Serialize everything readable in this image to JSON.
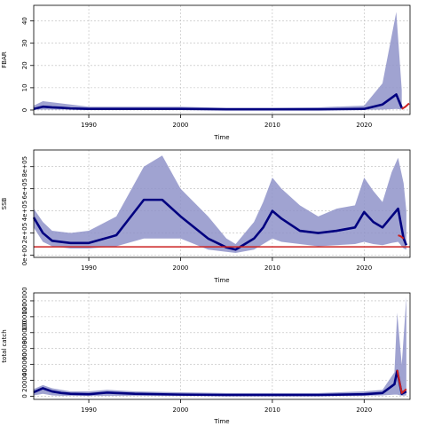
{
  "chart_data": [
    {
      "type": "area",
      "ylabel": "FBAR",
      "xlabel": "Time",
      "xlim": [
        1984,
        2025
      ],
      "ylim": [
        -2,
        47
      ],
      "xticks": [
        1990,
        2000,
        2010,
        2020
      ],
      "xtick_labels": [
        "1990",
        "2000",
        "2010",
        "2020"
      ],
      "yticks": [
        0,
        10,
        20,
        30,
        40
      ],
      "ytick_labels": [
        "0",
        "10",
        "20",
        "30",
        "40"
      ],
      "grid": true,
      "series": [
        {
          "role": "interval",
          "color": "#8f93c9",
          "x": [
            1984,
            1985,
            1986,
            1987,
            1988,
            1990,
            1995,
            2000,
            2005,
            2010,
            2015,
            2020,
            2022,
            2023.5,
            2024.1
          ],
          "lower": [
            0.2,
            0.2,
            0.2,
            0.2,
            0.2,
            0.1,
            0.1,
            0.1,
            0.1,
            0.1,
            0.1,
            0.1,
            0.2,
            0.5,
            0.3
          ],
          "upper": [
            2,
            4,
            3.5,
            3,
            2.5,
            1.5,
            1.5,
            1.5,
            1,
            1,
            1.2,
            2,
            12,
            44,
            9
          ]
        },
        {
          "role": "median",
          "color": "#000080",
          "x": [
            1984,
            1985,
            1986,
            1987,
            1988,
            1990,
            1995,
            2000,
            2005,
            2010,
            2015,
            2020,
            2022,
            2023.5,
            2024.1
          ],
          "y": [
            0.5,
            1.5,
            1.2,
            1.0,
            0.7,
            0.5,
            0.5,
            0.5,
            0.3,
            0.3,
            0.3,
            0.5,
            2.5,
            7.0,
            1.0
          ]
        },
        {
          "role": "projection",
          "color": "#cc2222",
          "x": [
            2024.1,
            2024.5,
            2024.9
          ],
          "y": [
            0.5,
            1.5,
            3.0
          ]
        }
      ]
    },
    {
      "type": "area",
      "ylabel": "SSB",
      "xlabel": "Time",
      "xlim": [
        1984,
        2025
      ],
      "ylim": [
        -20000,
        950000
      ],
      "xticks": [
        1990,
        2000,
        2010,
        2020
      ],
      "xtick_labels": [
        "1990",
        "2000",
        "2010",
        "2020"
      ],
      "yticks": [
        0,
        200000,
        400000,
        600000,
        800000
      ],
      "ytick_labels": [
        "0e+00",
        "2e+05",
        "4e+05",
        "6e+05",
        "8e+05"
      ],
      "grid": true,
      "reference_line": {
        "y": 75000,
        "color": "#cc2222"
      },
      "series": [
        {
          "role": "interval",
          "color": "#8f93c9",
          "x": [
            1984,
            1985,
            1986,
            1988,
            1990,
            1993,
            1996,
            1998,
            2000,
            2003,
            2005,
            2006,
            2008,
            2009,
            2010,
            2011,
            2013,
            2015,
            2017,
            2019,
            2020,
            2021,
            2022,
            2023,
            2023.7,
            2024.3,
            2024.6
          ],
          "lower": [
            250000,
            120000,
            80000,
            60000,
            60000,
            80000,
            150000,
            150000,
            150000,
            50000,
            30000,
            20000,
            50000,
            100000,
            150000,
            120000,
            100000,
            80000,
            90000,
            100000,
            120000,
            100000,
            90000,
            110000,
            120000,
            60000,
            50000
          ],
          "upper": [
            420000,
            300000,
            220000,
            200000,
            220000,
            350000,
            800000,
            900000,
            600000,
            350000,
            150000,
            100000,
            300000,
            480000,
            700000,
            600000,
            450000,
            350000,
            420000,
            450000,
            700000,
            580000,
            480000,
            750000,
            880000,
            650000,
            400000
          ]
        },
        {
          "role": "median",
          "color": "#000080",
          "x": [
            1984,
            1985,
            1986,
            1988,
            1990,
            1993,
            1996,
            1998,
            2000,
            2003,
            2005,
            2006,
            2008,
            2009,
            2010,
            2011,
            2013,
            2015,
            2017,
            2019,
            2020,
            2021,
            2022,
            2023,
            2023.7,
            2024.3,
            2024.6
          ],
          "y": [
            340000,
            200000,
            130000,
            110000,
            110000,
            180000,
            500000,
            500000,
            350000,
            150000,
            70000,
            50000,
            150000,
            250000,
            400000,
            330000,
            220000,
            200000,
            220000,
            250000,
            390000,
            300000,
            250000,
            350000,
            420000,
            150000,
            90000
          ]
        },
        {
          "role": "projection",
          "color": "#cc2222",
          "x": [
            2023.7,
            2024.0,
            2024.3
          ],
          "y": [
            180000,
            170000,
            150000
          ]
        }
      ]
    },
    {
      "type": "area",
      "ylabel": "total catch",
      "xlabel": "Time",
      "xlim": [
        1984,
        2025
      ],
      "ylim": [
        -40000,
        1300000
      ],
      "xticks": [
        1990,
        2000,
        2010,
        2020
      ],
      "xtick_labels": [
        "1990",
        "2000",
        "2010",
        "2020"
      ],
      "yticks": [
        0,
        200000,
        400000,
        600000,
        800000,
        1000000,
        1200000
      ],
      "ytick_labels": [
        "0",
        "200000",
        "400000",
        "600000",
        "800000",
        "1000000",
        "1200000"
      ],
      "grid": true,
      "series": [
        {
          "role": "interval",
          "color": "#8f93c9",
          "x": [
            1984,
            1985,
            1986,
            1987,
            1988,
            1990,
            1992,
            1995,
            2000,
            2005,
            2010,
            2015,
            2020,
            2022,
            2023.3,
            2023.6,
            2024.1,
            2024.6
          ],
          "lower": [
            10000,
            30000,
            10000,
            5000,
            5000,
            3000,
            5000,
            5000,
            5000,
            3000,
            3000,
            3000,
            5000,
            10000,
            20000,
            20000,
            5000,
            10000
          ],
          "upper": [
            90000,
            140000,
            100000,
            80000,
            60000,
            60000,
            80000,
            60000,
            50000,
            40000,
            40000,
            40000,
            60000,
            80000,
            300000,
            1050000,
            400000,
            1250000
          ]
        },
        {
          "role": "median",
          "color": "#000080",
          "x": [
            1984,
            1985,
            1986,
            1987,
            1988,
            1990,
            1992,
            1995,
            2000,
            2005,
            2010,
            2015,
            2020,
            2022,
            2023.3,
            2023.6,
            2024.1,
            2024.6
          ],
          "y": [
            50000,
            100000,
            60000,
            40000,
            30000,
            25000,
            45000,
            30000,
            20000,
            15000,
            15000,
            15000,
            25000,
            40000,
            150000,
            320000,
            30000,
            60000
          ]
        },
        {
          "role": "projection",
          "color": "#cc2222",
          "x": [
            2023.6,
            2024.1,
            2024.6
          ],
          "y": [
            330000,
            40000,
            90000
          ]
        }
      ]
    }
  ]
}
